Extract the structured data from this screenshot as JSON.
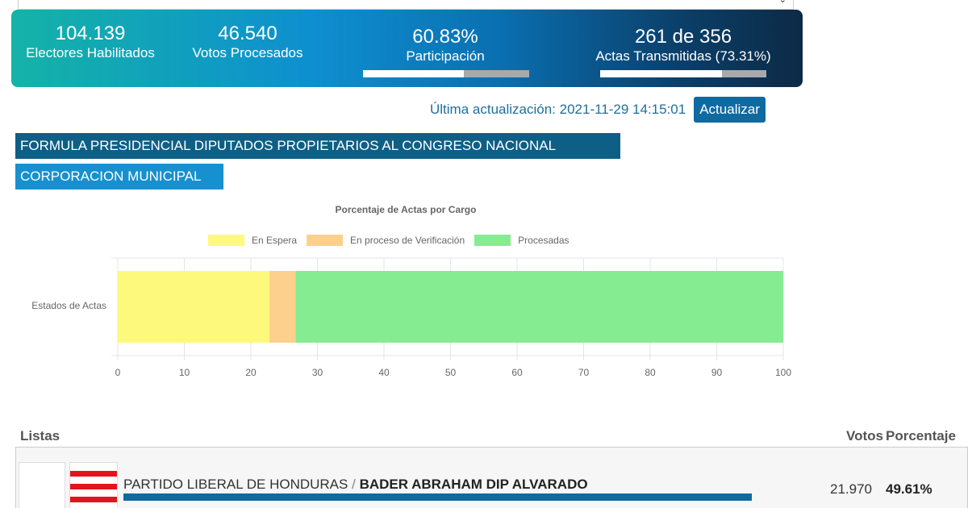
{
  "stats": {
    "electores": {
      "value": "104.139",
      "label": "Electores Habilitados"
    },
    "votos": {
      "value": "46.540",
      "label": "Votos Procesados"
    },
    "participacion": {
      "value": "60.83%",
      "label": "Participación",
      "progress": 0.6083
    },
    "actas": {
      "value": "261 de 356",
      "label": "Actas Transmitidas (73.31%)",
      "progress": 0.7331
    }
  },
  "update": {
    "text": "Última actualización: 2021-11-29 14:15:01",
    "button_label": "Actualizar"
  },
  "tabs": [
    {
      "label": "FORMULA PRESIDENCIAL  DIPUTADOS PROPIETARIOS AL CONGRESO NACIONAL"
    },
    {
      "label": "CORPORACION MUNICIPAL"
    }
  ],
  "chart_data": {
    "type": "bar",
    "orientation": "horizontal",
    "stacked": true,
    "title": "Porcentaje de Actas por Cargo",
    "categories": [
      "Estados de Actas"
    ],
    "series": [
      {
        "name": "En Espera",
        "values": [
          22.8
        ],
        "color": "#fdf97c"
      },
      {
        "name": "En proceso de Verificación",
        "values": [
          3.9
        ],
        "color": "#fdd08d"
      },
      {
        "name": "Procesadas",
        "values": [
          73.3
        ],
        "color": "#86ec91"
      }
    ],
    "xlim": [
      0,
      100
    ],
    "xticks": [
      "0",
      "10",
      "20",
      "30",
      "40",
      "50",
      "60",
      "70",
      "80",
      "90",
      "100"
    ],
    "grid": true,
    "legend": "top"
  },
  "listas": {
    "header": {
      "listas": "Listas",
      "votos": "Votos",
      "porcentaje": "Porcentaje"
    },
    "rows": [
      {
        "party": "PARTIDO LIBERAL DE HONDURAS",
        "separator": "/",
        "candidate": "BADER ABRAHAM DIP ALVARADO",
        "votes": "21.970",
        "percent": "49.61%",
        "share": 0.4961,
        "flag_color": "#e3141d"
      }
    ]
  }
}
